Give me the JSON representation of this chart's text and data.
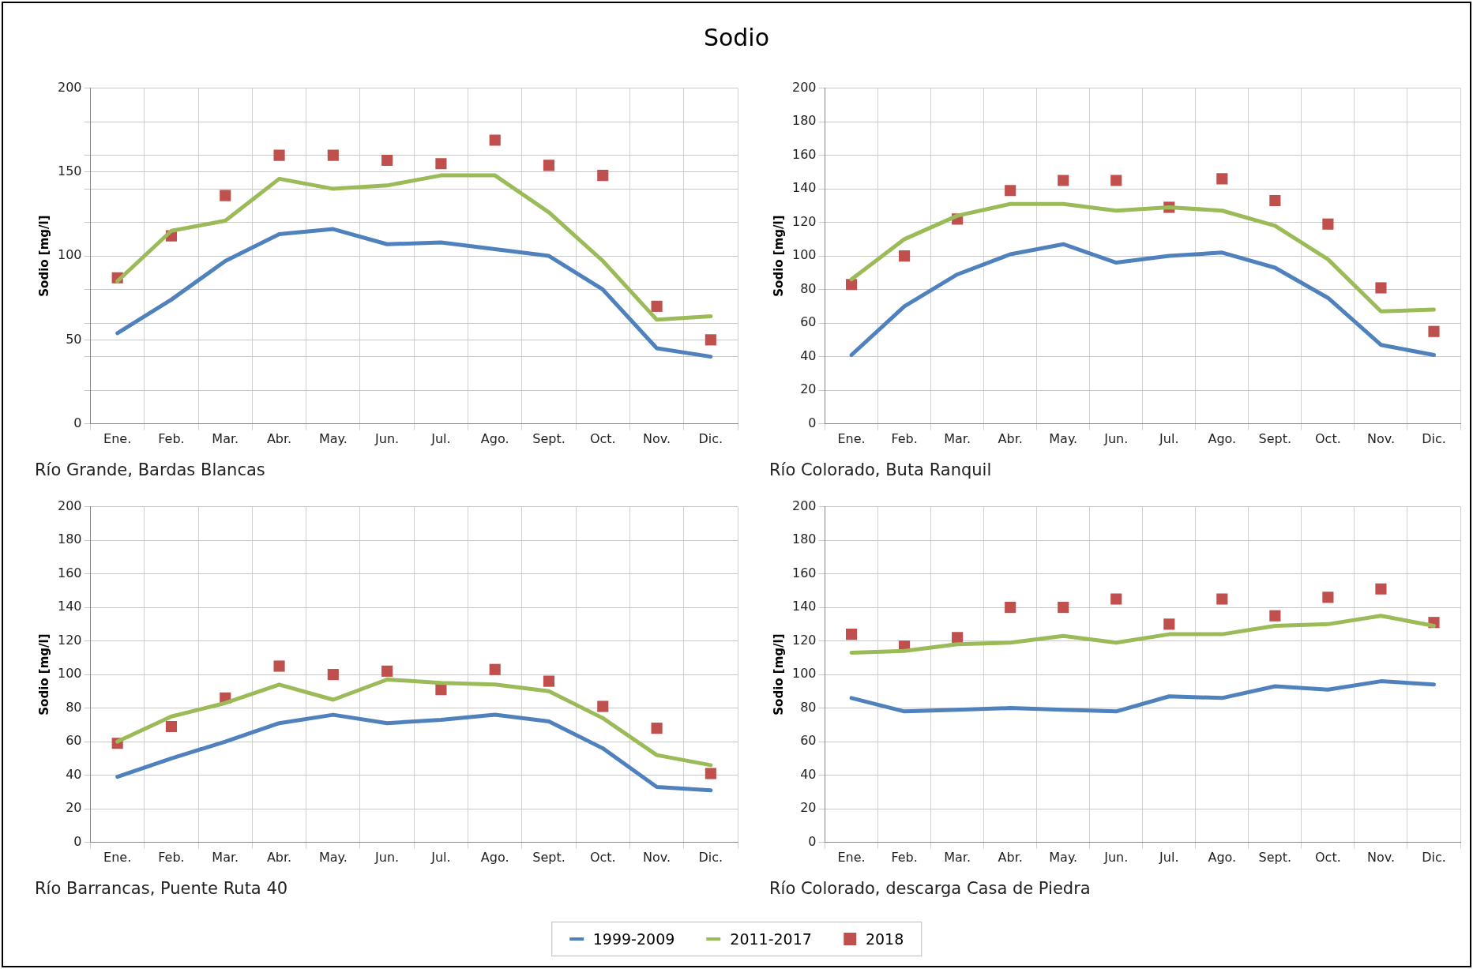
{
  "chart_data": [
    {
      "type": "line",
      "title": "Sodio",
      "xlabel": "Río Grande, Bardas Blancas",
      "ylabel": "Sodio [mg/l]",
      "legend": "bottom",
      "grid": true,
      "categories": [
        "Ene.",
        "Feb.",
        "Mar.",
        "Abr.",
        "May.",
        "Jun.",
        "Jul.",
        "Ago.",
        "Sept.",
        "Oct.",
        "Nov.",
        "Dic."
      ],
      "ylim": [
        0,
        200
      ],
      "yticks": [
        0,
        {
          "value": 20,
          "label": null
        },
        {
          "value": 40,
          "label": null
        },
        50,
        {
          "value": 60,
          "label": null
        },
        {
          "value": 80,
          "label": null
        },
        100,
        {
          "value": 120,
          "label": null
        },
        {
          "value": 140,
          "label": null
        },
        150,
        {
          "value": 160,
          "label": null
        },
        {
          "value": 180,
          "label": null
        },
        200
      ],
      "series": [
        {
          "name": "1999-2009",
          "type": "line",
          "marker": "none",
          "color": "#4f81bd",
          "values": [
            54,
            74,
            97,
            113,
            116,
            107,
            108,
            104,
            100,
            80,
            45,
            40
          ]
        },
        {
          "name": "2011-2017",
          "type": "line",
          "marker": "none",
          "color": "#9bbb59",
          "values": [
            85,
            115,
            121,
            146,
            140,
            142,
            148,
            148,
            126,
            97,
            62,
            64
          ]
        },
        {
          "name": "2018",
          "type": "scatter",
          "marker": "square",
          "color": "#c0504d",
          "values": [
            87,
            112,
            136,
            160,
            160,
            157,
            155,
            169,
            154,
            148,
            70,
            50
          ]
        }
      ]
    },
    {
      "type": "line",
      "xlabel": "Río Colorado, Buta Ranquil",
      "ylabel": "Sodio [mg/l]",
      "grid": true,
      "categories": [
        "Ene.",
        "Feb.",
        "Mar.",
        "Abr.",
        "May.",
        "Jun.",
        "Jul.",
        "Ago.",
        "Sept.",
        "Oct.",
        "Nov.",
        "Dic."
      ],
      "ylim": [
        0,
        200
      ],
      "yticks": [
        0,
        20,
        40,
        60,
        80,
        100,
        120,
        140,
        160,
        180,
        200
      ],
      "series": [
        {
          "type": "line",
          "marker": "none",
          "color": "#4f81bd",
          "values": [
            41,
            70,
            89,
            101,
            107,
            96,
            100,
            102,
            93,
            75,
            47,
            41
          ]
        },
        {
          "type": "line",
          "marker": "none",
          "color": "#9bbb59",
          "values": [
            86,
            110,
            124,
            131,
            131,
            127,
            129,
            127,
            118,
            98,
            67,
            68
          ]
        },
        {
          "type": "scatter",
          "marker": "square",
          "color": "#c0504d",
          "values": [
            83,
            100,
            122,
            139,
            145,
            145,
            129,
            146,
            133,
            119,
            81,
            55
          ]
        }
      ]
    },
    {
      "type": "line",
      "xlabel": "Río Barrancas, Puente Ruta 40",
      "ylabel": "Sodio [mg/l]",
      "grid": true,
      "categories": [
        "Ene.",
        "Feb.",
        "Mar.",
        "Abr.",
        "May.",
        "Jun.",
        "Jul.",
        "Ago.",
        "Sept.",
        "Oct.",
        "Nov.",
        "Dic."
      ],
      "ylim": [
        0,
        200
      ],
      "yticks": [
        0,
        20,
        40,
        60,
        80,
        100,
        120,
        140,
        160,
        180,
        200
      ],
      "series": [
        {
          "type": "line",
          "marker": "none",
          "color": "#4f81bd",
          "values": [
            39,
            50,
            60,
            71,
            76,
            71,
            73,
            76,
            72,
            56,
            33,
            31
          ]
        },
        {
          "type": "line",
          "marker": "none",
          "color": "#9bbb59",
          "values": [
            60,
            75,
            83,
            94,
            85,
            97,
            95,
            94,
            90,
            74,
            52,
            46
          ]
        },
        {
          "type": "scatter",
          "marker": "square",
          "color": "#c0504d",
          "values": [
            59,
            69,
            86,
            105,
            100,
            102,
            91,
            103,
            96,
            81,
            68,
            41
          ]
        }
      ]
    },
    {
      "type": "line",
      "xlabel": "Río Colorado, descarga Casa de Piedra",
      "ylabel": "Sodio [mg/l]",
      "grid": true,
      "categories": [
        "Ene.",
        "Feb.",
        "Mar.",
        "Abr.",
        "May.",
        "Jun.",
        "Jul.",
        "Ago.",
        "Sept.",
        "Oct.",
        "Nov.",
        "Dic."
      ],
      "ylim": [
        0,
        200
      ],
      "yticks": [
        0,
        20,
        40,
        60,
        80,
        100,
        120,
        140,
        160,
        180,
        200
      ],
      "series": [
        {
          "type": "line",
          "marker": "none",
          "color": "#4f81bd",
          "values": [
            86,
            78,
            79,
            80,
            79,
            78,
            87,
            86,
            93,
            91,
            96,
            94
          ]
        },
        {
          "type": "line",
          "marker": "none",
          "color": "#9bbb59",
          "values": [
            113,
            114,
            118,
            119,
            123,
            119,
            124,
            124,
            129,
            130,
            135,
            129
          ]
        },
        {
          "type": "scatter",
          "marker": "square",
          "color": "#c0504d",
          "values": [
            124,
            117,
            122,
            140,
            140,
            145,
            130,
            145,
            135,
            146,
            151,
            131
          ]
        }
      ]
    }
  ]
}
